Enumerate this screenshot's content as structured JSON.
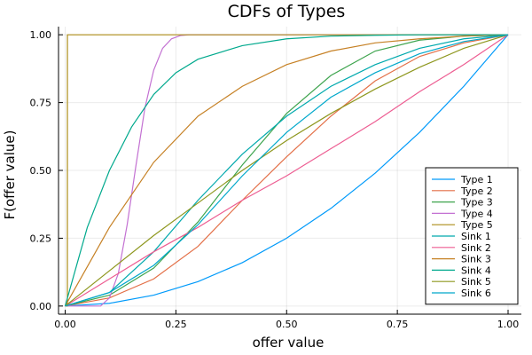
{
  "chart_data": {
    "type": "line",
    "title": "CDFs of Types",
    "xlabel": "offer value",
    "ylabel": "F(offer value)",
    "xlim": [
      -0.015,
      1.03
    ],
    "ylim": [
      -0.03,
      1.03
    ],
    "xticks": [
      0.0,
      0.25,
      0.5,
      0.75,
      1.0
    ],
    "xtick_labels": [
      "0.00",
      "0.25",
      "0.50",
      "0.75",
      "1.00"
    ],
    "yticks": [
      0.0,
      0.25,
      0.5,
      0.75,
      1.0
    ],
    "ytick_labels": [
      "0.00",
      "0.25",
      "0.50",
      "0.75",
      "1.00"
    ],
    "grid": true,
    "legend_position": "bottom-right",
    "series": [
      {
        "name": "Type 1",
        "color": "#009AFA",
        "x": [
          0.0,
          0.1,
          0.2,
          0.3,
          0.4,
          0.5,
          0.6,
          0.7,
          0.8,
          0.9,
          1.0
        ],
        "y": [
          0.0,
          0.01,
          0.04,
          0.09,
          0.16,
          0.25,
          0.36,
          0.49,
          0.64,
          0.81,
          1.0
        ]
      },
      {
        "name": "Type 2",
        "color": "#E36F47",
        "x": [
          0.0,
          0.1,
          0.2,
          0.3,
          0.4,
          0.5,
          0.6,
          0.7,
          0.8,
          0.9,
          1.0
        ],
        "y": [
          0.0,
          0.03,
          0.1,
          0.22,
          0.39,
          0.55,
          0.7,
          0.83,
          0.92,
          0.97,
          1.0
        ]
      },
      {
        "name": "Type 3",
        "color": "#3EA44E",
        "x": [
          0.0,
          0.1,
          0.2,
          0.3,
          0.4,
          0.5,
          0.6,
          0.7,
          0.8,
          0.9,
          1.0
        ],
        "y": [
          0.0,
          0.04,
          0.14,
          0.31,
          0.52,
          0.71,
          0.85,
          0.94,
          0.98,
          0.995,
          1.0
        ]
      },
      {
        "name": "Type 4",
        "color": "#C371D2",
        "x": [
          0.0,
          0.08,
          0.1,
          0.12,
          0.14,
          0.16,
          0.18,
          0.2,
          0.22,
          0.24,
          0.26,
          0.28,
          0.3,
          1.0
        ],
        "y": [
          0.0,
          0.0,
          0.03,
          0.12,
          0.3,
          0.52,
          0.73,
          0.87,
          0.95,
          0.985,
          0.997,
          1.0,
          1.0,
          1.0
        ]
      },
      {
        "name": "Type 5",
        "color": "#AC8D18",
        "x": [
          0.0,
          0.005,
          0.0051,
          1.0
        ],
        "y": [
          0.0,
          0.0,
          1.0,
          1.0
        ]
      },
      {
        "name": "Sink 1",
        "color": "#00A9AD",
        "x": [
          0.0,
          0.1,
          0.2,
          0.3,
          0.4,
          0.5,
          0.6,
          0.7,
          0.8,
          0.9,
          1.0
        ],
        "y": [
          0.0,
          0.05,
          0.2,
          0.39,
          0.56,
          0.7,
          0.81,
          0.89,
          0.95,
          0.985,
          1.0
        ]
      },
      {
        "name": "Sink 2",
        "color": "#ED5D92",
        "x": [
          0.0,
          0.1,
          0.2,
          0.3,
          0.4,
          0.5,
          0.6,
          0.7,
          0.8,
          0.9,
          1.0
        ],
        "y": [
          0.0,
          0.1,
          0.2,
          0.29,
          0.39,
          0.48,
          0.58,
          0.68,
          0.79,
          0.89,
          1.0
        ]
      },
      {
        "name": "Sink 3",
        "color": "#C68125",
        "x": [
          0.0,
          0.1,
          0.2,
          0.3,
          0.4,
          0.5,
          0.6,
          0.7,
          0.8,
          0.9,
          1.0
        ],
        "y": [
          0.0,
          0.29,
          0.53,
          0.7,
          0.81,
          0.89,
          0.94,
          0.97,
          0.985,
          0.995,
          1.0
        ]
      },
      {
        "name": "Sink 4",
        "color": "#00A98D",
        "x": [
          0.0,
          0.05,
          0.1,
          0.15,
          0.2,
          0.25,
          0.3,
          0.4,
          0.5,
          0.6,
          0.7,
          0.8,
          1.0
        ],
        "y": [
          0.0,
          0.29,
          0.5,
          0.66,
          0.78,
          0.86,
          0.91,
          0.96,
          0.985,
          0.995,
          0.998,
          1.0,
          1.0
        ]
      },
      {
        "name": "Sink 5",
        "color": "#8E971E",
        "x": [
          0.0,
          0.1,
          0.2,
          0.3,
          0.4,
          0.5,
          0.6,
          0.7,
          0.8,
          0.9,
          1.0
        ],
        "y": [
          0.0,
          0.13,
          0.26,
          0.38,
          0.5,
          0.61,
          0.71,
          0.8,
          0.88,
          0.95,
          1.0
        ]
      },
      {
        "name": "Sink 6",
        "color": "#00A8CB",
        "x": [
          0.0,
          0.1,
          0.2,
          0.3,
          0.4,
          0.5,
          0.6,
          0.7,
          0.8,
          0.9,
          1.0
        ],
        "y": [
          0.0,
          0.05,
          0.15,
          0.3,
          0.48,
          0.64,
          0.77,
          0.86,
          0.93,
          0.975,
          1.0
        ]
      }
    ]
  }
}
